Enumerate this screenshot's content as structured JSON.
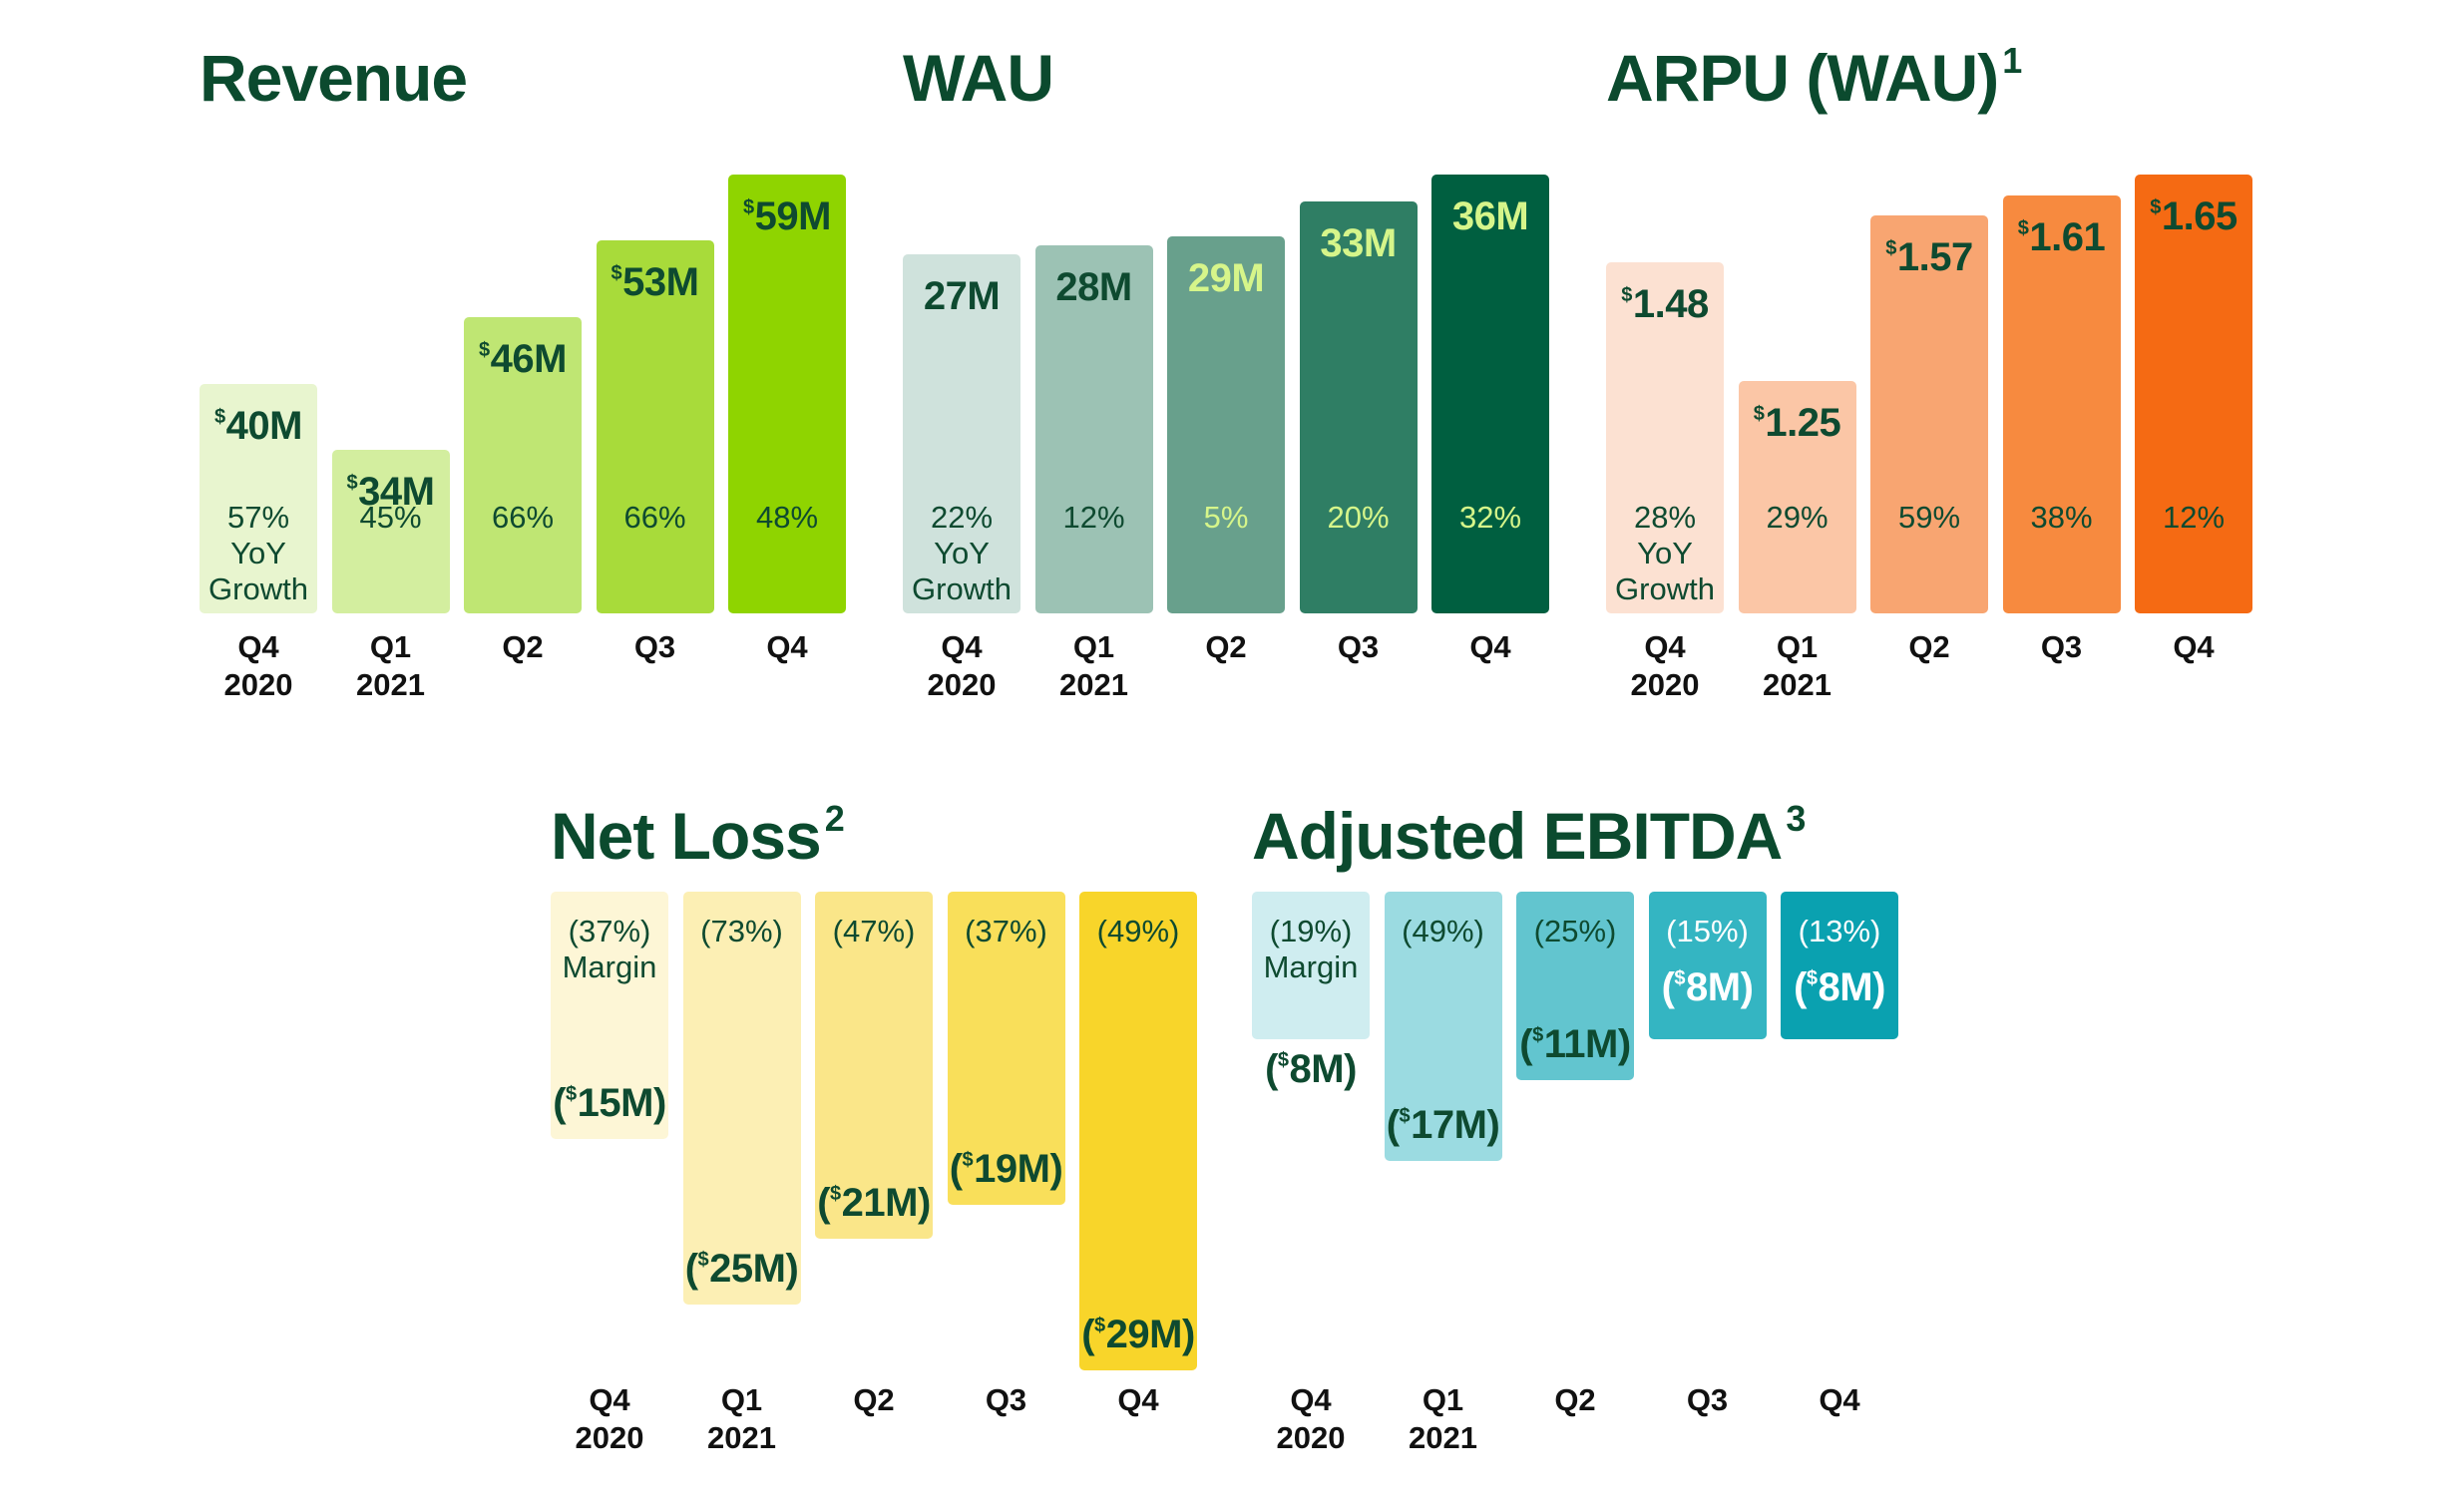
{
  "chart_data": [
    {
      "type": "bar",
      "title": "Revenue",
      "title_sup": "",
      "categories": [
        "Q4\n2020",
        "Q1\n2021",
        "Q2",
        "Q3",
        "Q4"
      ],
      "values": [
        40,
        34,
        46,
        53,
        59
      ],
      "unit": "M",
      "currency": "$",
      "value_labels": [
        "40M",
        "34M",
        "46M",
        "53M",
        "59M"
      ],
      "secondary_label": "YoY Growth",
      "secondary_values": [
        "57%\nYoY\nGrowth",
        "45%",
        "66%",
        "66%",
        "48%"
      ],
      "colors": [
        "#e8f5cf",
        "#d3ee9f",
        "#bfe673",
        "#a8db3a",
        "#8fd400"
      ],
      "value_text_colors": [
        "#0e4a30",
        "#0e4a30",
        "#0e4a30",
        "#0e4a30",
        "#0e4a30"
      ],
      "pct_text_colors": [
        "#0e4a30",
        "#0e4a30",
        "#0e4a30",
        "#0e4a30",
        "#0e4a30"
      ],
      "ylim": [
        0,
        59
      ]
    },
    {
      "type": "bar",
      "title": "WAU",
      "title_sup": "",
      "categories": [
        "Q4\n2020",
        "Q1\n2021",
        "Q2",
        "Q3",
        "Q4"
      ],
      "values": [
        27,
        28,
        29,
        33,
        36
      ],
      "unit": "M",
      "currency": "",
      "value_labels": [
        "27M",
        "28M",
        "29M",
        "33M",
        "36M"
      ],
      "secondary_label": "YoY Growth",
      "secondary_values": [
        "22%\nYoY\nGrowth",
        "12%",
        "5%",
        "20%",
        "32%"
      ],
      "colors": [
        "#cfe2dc",
        "#9cc2b4",
        "#68a08c",
        "#2f7e64",
        "#005f40"
      ],
      "value_text_colors": [
        "#0e4a30",
        "#0e4a30",
        "#d6f58a",
        "#d6f58a",
        "#d6f58a"
      ],
      "pct_text_colors": [
        "#0e4a30",
        "#0e4a30",
        "#d6f58a",
        "#d6f58a",
        "#d6f58a"
      ],
      "ylim": [
        0,
        36
      ]
    },
    {
      "type": "bar",
      "title": "ARPU (WAU)",
      "title_sup": "1",
      "categories": [
        "Q4\n2020",
        "Q1\n2021",
        "Q2",
        "Q3",
        "Q4"
      ],
      "values": [
        1.48,
        1.25,
        1.57,
        1.61,
        1.65
      ],
      "unit": "",
      "currency": "$",
      "value_labels": [
        "1.48",
        "1.25",
        "1.57",
        "1.61",
        "1.65"
      ],
      "secondary_label": "YoY Growth",
      "secondary_values": [
        "28%\nYoY\nGrowth",
        "29%",
        "59%",
        "38%",
        "12%"
      ],
      "colors": [
        "#fce1d2",
        "#fbc6a6",
        "#f8a571",
        "#f78a3f",
        "#f56a13"
      ],
      "value_text_colors": [
        "#0e4a30",
        "#0e4a30",
        "#0e4a30",
        "#0e4a30",
        "#0e4a30"
      ],
      "pct_text_colors": [
        "#0e4a30",
        "#0e4a30",
        "#0e4a30",
        "#0e4a30",
        "#0e4a30"
      ],
      "ylim": [
        0,
        1.65
      ]
    },
    {
      "type": "bar",
      "title": "Net Loss",
      "title_sup": "2",
      "categories": [
        "Q4\n2020",
        "Q1\n2021",
        "Q2",
        "Q3",
        "Q4"
      ],
      "values": [
        -15,
        -25,
        -21,
        -19,
        -29
      ],
      "unit": "M",
      "currency": "$",
      "value_labels": [
        "(15M)",
        "(25M)",
        "(21M)",
        "(19M)",
        "(29M)"
      ],
      "secondary_label": "Margin",
      "secondary_values": [
        "(37%)\nMargin",
        "(73%)",
        "(47%)",
        "(37%)",
        "(49%)"
      ],
      "colors": [
        "#fdf6d6",
        "#fcefb4",
        "#fae689",
        "#f9df5a",
        "#f8d52a"
      ],
      "value_text_colors": [
        "#0e4a30",
        "#0e4a30",
        "#0e4a30",
        "#0e4a30",
        "#0e4a30"
      ],
      "pct_text_colors": [
        "#0e4a30",
        "#0e4a30",
        "#0e4a30",
        "#0e4a30",
        "#0e4a30"
      ],
      "ylim": [
        -29,
        0
      ]
    },
    {
      "type": "bar",
      "title": "Adjusted EBITDA",
      "title_sup": "3",
      "categories": [
        "Q4\n2020",
        "Q1\n2021",
        "Q2",
        "Q3",
        "Q4"
      ],
      "values": [
        -8,
        -17,
        -11,
        -8,
        -8
      ],
      "unit": "M",
      "currency": "$",
      "value_labels": [
        "(8M)",
        "(17M)",
        "(11M)",
        "(8M)",
        "(8M)"
      ],
      "secondary_label": "Margin",
      "secondary_values": [
        "(19%)\nMargin",
        "(49%)",
        "(25%)",
        "(15%)",
        "(13%)"
      ],
      "colors": [
        "#cfedf0",
        "#9bdbe1",
        "#62c5cf",
        "#34b5c2",
        "#0aa1b0"
      ],
      "value_text_colors": [
        "#0e4a30",
        "#0e4a30",
        "#0e4a30",
        "#ffffff",
        "#ffffff"
      ],
      "pct_text_colors": [
        "#0e4a30",
        "#0e4a30",
        "#0e4a30",
        "#ffffff",
        "#ffffff"
      ],
      "ylim": [
        -29,
        0
      ]
    }
  ]
}
